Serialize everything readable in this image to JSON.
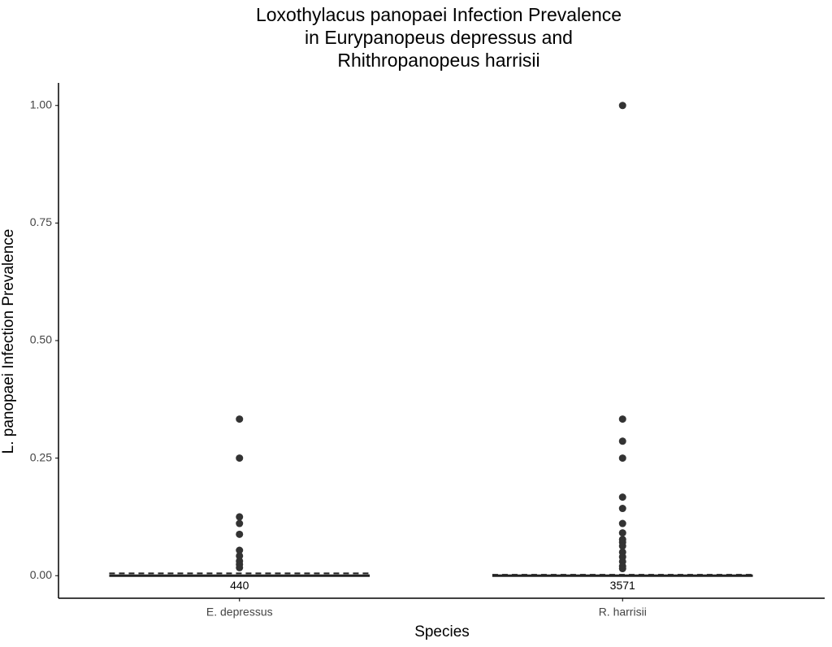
{
  "chart_data": {
    "type": "box",
    "title": [
      "Loxothylacus panopaei Infection Prevalence",
      "in Eurypanopeus depressus and",
      "Rhithropanopeus harrisii"
    ],
    "x_label": "Species",
    "y_label": "L. panopaei Infection Prevalence",
    "categories": [
      "E. depressus",
      "R. harrisii"
    ],
    "color": "#333333",
    "boxes": [
      {
        "min": 0,
        "q1": 0,
        "median": 0,
        "q3": 0,
        "max": 0,
        "mean": 0.005,
        "n": 440,
        "outliers": [
          0.333,
          0.25,
          0.125,
          0.111,
          0.088,
          0.054,
          0.042,
          0.031,
          0.024,
          0.017
        ]
      },
      {
        "min": 0,
        "q1": 0,
        "median": 0,
        "q3": 0,
        "max": 0,
        "mean": 0.002,
        "n": 3571,
        "outliers": [
          1.0,
          0.333,
          0.286,
          0.25,
          0.167,
          0.143,
          0.111,
          0.091,
          0.077,
          0.071,
          0.063,
          0.05,
          0.04,
          0.03,
          0.02,
          0.015
        ]
      }
    ],
    "ylim": [
      -0.048,
      1.048
    ],
    "yticks": [
      {
        "value": 0,
        "label": "0.00"
      },
      {
        "value": 0.25,
        "label": "0.25"
      },
      {
        "value": 0.5,
        "label": "0.50"
      },
      {
        "value": 0.75,
        "label": "0.75"
      },
      {
        "value": 1,
        "label": "1.00"
      }
    ],
    "grid": false
  }
}
